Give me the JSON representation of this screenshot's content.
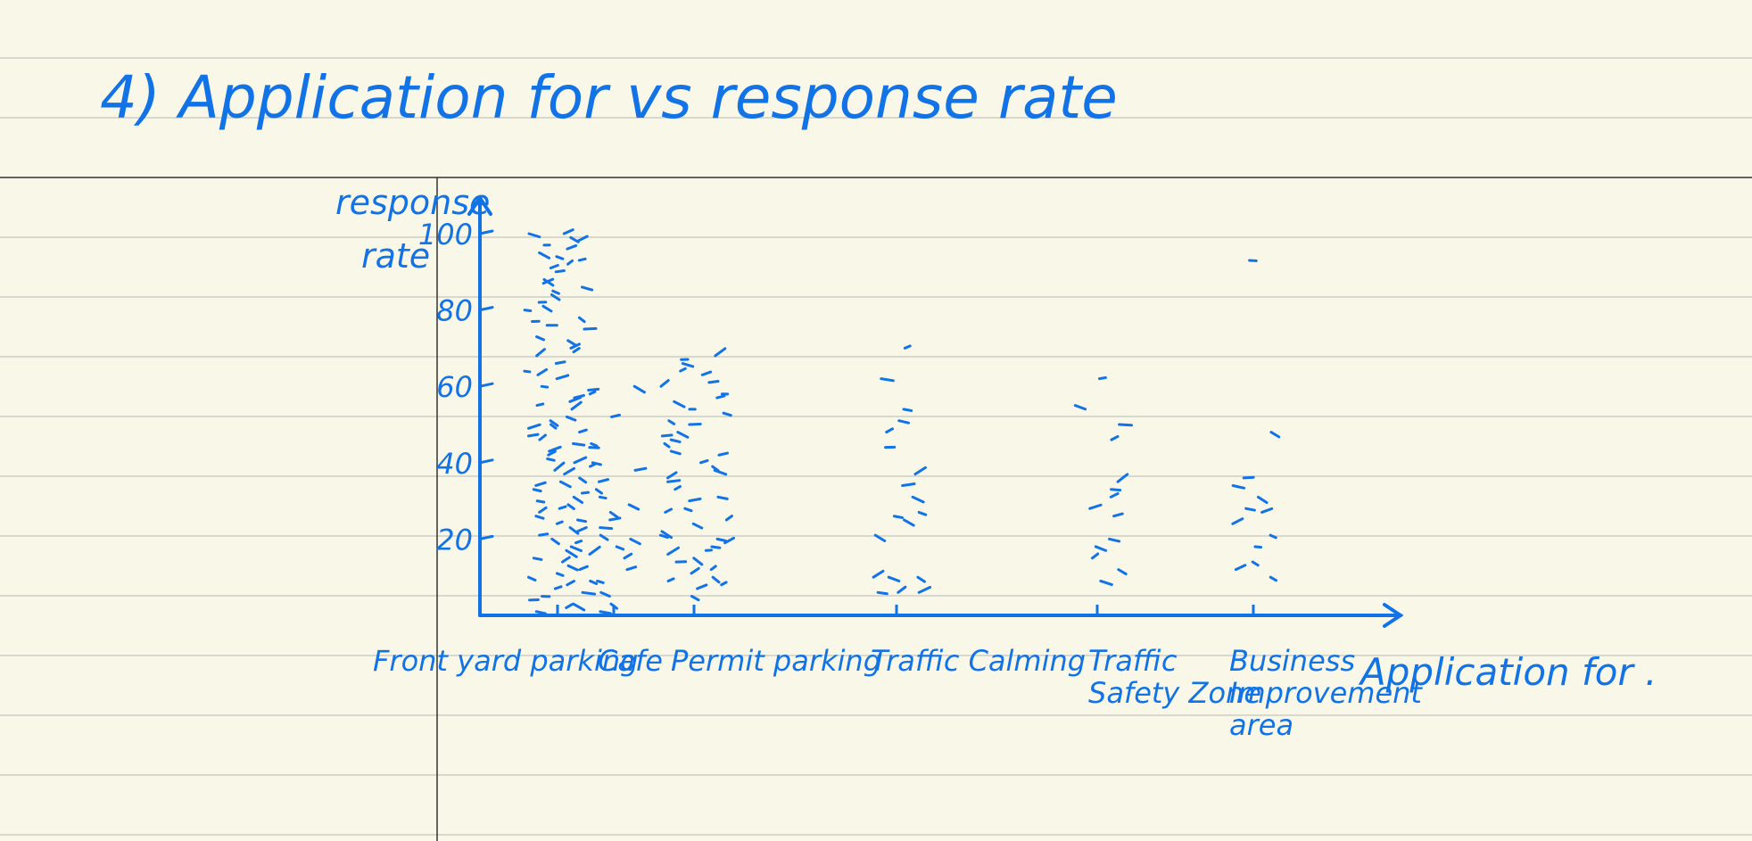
{
  "page": {
    "title": "4) Application for vs response rate",
    "paper_color": "#f9f7e8",
    "ink_color": "#1173e6",
    "rule_color": "#d9d8cf",
    "margin_rule_color": "#333333"
  },
  "chart_data": {
    "type": "scatter",
    "title": "4) Application for vs response rate",
    "xlabel": "Application for .",
    "ylabel_lines": [
      "response",
      "rate"
    ],
    "ylim": [
      0,
      100
    ],
    "y_ticks": [
      "100",
      "80",
      "60",
      "40",
      "20"
    ],
    "y_tick_values": [
      100,
      80,
      60,
      40,
      20
    ],
    "grid": false,
    "categories": [
      {
        "label_lines": [
          "Front yard parking"
        ],
        "values": [
          100,
          100,
          99,
          98,
          97,
          96,
          95,
          94,
          93,
          92,
          91,
          90,
          88,
          87,
          86,
          85,
          84,
          82,
          81,
          80,
          78,
          77,
          76,
          75,
          73,
          72,
          70,
          69,
          68,
          66,
          64,
          63,
          62,
          60,
          59,
          58,
          57,
          56,
          55,
          54,
          52,
          51,
          50,
          49,
          48,
          47,
          46,
          45,
          44,
          43,
          42,
          41,
          40,
          39,
          38,
          37,
          36,
          35,
          34,
          33,
          32,
          31,
          30,
          29,
          28,
          27,
          26,
          25,
          24,
          23,
          22,
          21,
          20,
          19,
          18,
          17,
          16,
          15,
          14,
          13,
          12,
          11,
          10,
          9,
          8,
          7,
          6,
          5,
          4,
          3,
          2,
          1
        ]
      },
      {
        "label_lines": [
          "Cafe"
        ],
        "values": [
          60,
          52,
          45,
          40,
          38,
          35,
          33,
          31,
          29,
          27,
          25,
          23,
          21,
          20,
          18,
          15,
          12,
          9,
          6,
          3,
          1
        ]
      },
      {
        "label_lines": [
          "Permit parking"
        ],
        "values": [
          68,
          67,
          66,
          64,
          63,
          61,
          60,
          58,
          57,
          56,
          54,
          53,
          51,
          50,
          48,
          47,
          46,
          45,
          43,
          42,
          40,
          39,
          38,
          36,
          35,
          33,
          31,
          30,
          28,
          27,
          25,
          24,
          22,
          21,
          20,
          19,
          18,
          17,
          16,
          15,
          14,
          12,
          11,
          10,
          9,
          8,
          7,
          5
        ]
      },
      {
        "label_lines": [
          "Traffic Calming"
        ],
        "values": [
          70,
          62,
          54,
          51,
          48,
          44,
          37,
          34,
          31,
          27,
          26,
          25,
          21,
          10,
          10,
          10,
          6,
          6,
          6
        ]
      },
      {
        "label_lines": [
          "Traffic",
          "Safety Zone"
        ],
        "values": [
          62,
          55,
          50,
          46,
          35,
          33,
          31,
          28,
          26,
          20,
          18,
          15,
          12,
          9
        ]
      },
      {
        "label_lines": [
          "Business",
          "Improvement",
          "area"
        ],
        "values": [
          93,
          48,
          36,
          34,
          31,
          28,
          27,
          24,
          21,
          18,
          14,
          12,
          10
        ]
      }
    ]
  }
}
